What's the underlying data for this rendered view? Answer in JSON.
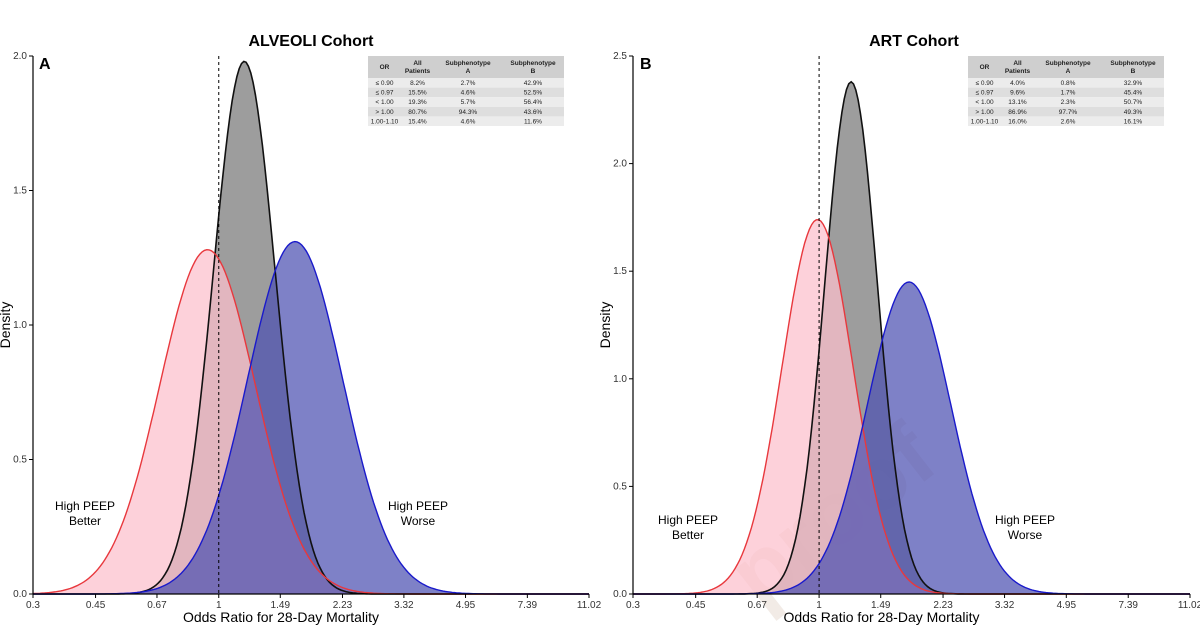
{
  "colors": {
    "alternative_fill": "#fcbfcc",
    "alternative_line": "#e8383d",
    "overall_fill": "#8c8c8c",
    "overall_line": "#111111",
    "subphenotype_fill": "#4c50b1",
    "subphenotype_line": "#1a1acb",
    "overlap_fill": "#6e2a3e"
  },
  "annotation_left": [
    "High PEEP",
    "Better"
  ],
  "annotation_right": [
    "High PEEP",
    "Worse"
  ],
  "x_tick_labels": [
    "0.3",
    "0.45",
    "0.67",
    "1",
    "1.49",
    "2.23",
    "3.32",
    "4.95",
    "7.39",
    "11.02"
  ],
  "xlabel": "Odds Ratio for 28-Day Mortality",
  "ylabel": "Density",
  "watermark": "proof",
  "table_header": [
    "OR",
    "All Patients",
    "Subphenotype A",
    "Subphenotype B"
  ],
  "chart_data": [
    {
      "type": "area",
      "panel": "A",
      "title": "ALVEOLI Cohort",
      "xlabel": "Odds Ratio for 28-Day Mortality",
      "ylabel": "Density",
      "x_scale": "log",
      "xlim": [
        0.3,
        11.02
      ],
      "ylim": [
        0,
        2.0
      ],
      "y_ticks": [
        "0.0",
        "0.5",
        "1.0",
        "1.5",
        "2.0"
      ],
      "reference_line": 1,
      "series": [
        {
          "color": "#8c8c8c",
          "peak_x": 1.18,
          "peak_y": 1.98,
          "log_sd": 0.2
        },
        {
          "color": "#fcbfcc",
          "peak_x": 0.93,
          "peak_y": 1.28,
          "log_sd": 0.31
        },
        {
          "color": "#4c50b1",
          "peak_x": 1.64,
          "peak_y": 1.31,
          "log_sd": 0.31
        }
      ],
      "table": [
        [
          "≤ 0.90",
          "8.2%",
          "2.7%",
          "42.9%"
        ],
        [
          "≤ 0.97",
          "15.5%",
          "4.6%",
          "52.5%"
        ],
        [
          "< 1.00",
          "19.3%",
          "5.7%",
          "56.4%"
        ],
        [
          "> 1.00",
          "80.7%",
          "94.3%",
          "43.6%"
        ],
        [
          "1.00-1.10",
          "15.4%",
          "4.6%",
          "11.6%"
        ]
      ]
    },
    {
      "type": "area",
      "panel": "B",
      "title": "ART Cohort",
      "xlabel": "Odds Ratio for 28-Day Mortality",
      "ylabel": "Density",
      "x_scale": "log",
      "xlim": [
        0.3,
        11.02
      ],
      "ylim": [
        0,
        2.5
      ],
      "y_ticks": [
        "0.0",
        "0.5",
        "1.0",
        "1.5",
        "2.0",
        "2.5"
      ],
      "reference_line": 1,
      "series": [
        {
          "color": "#8c8c8c",
          "peak_x": 1.23,
          "peak_y": 2.38,
          "log_sd": 0.17
        },
        {
          "color": "#fcbfcc",
          "peak_x": 0.99,
          "peak_y": 1.74,
          "log_sd": 0.23
        },
        {
          "color": "#4c50b1",
          "peak_x": 1.79,
          "peak_y": 1.45,
          "log_sd": 0.27
        }
      ],
      "table": [
        [
          "≤ 0.90",
          "4.0%",
          "0.8%",
          "32.9%"
        ],
        [
          "≤ 0.97",
          "9.6%",
          "1.7%",
          "45.4%"
        ],
        [
          "< 1.00",
          "13.1%",
          "2.3%",
          "50.7%"
        ],
        [
          "> 1.00",
          "86.9%",
          "97.7%",
          "49.3%"
        ],
        [
          "1.00-1.10",
          "16.0%",
          "2.6%",
          "16.1%"
        ]
      ]
    }
  ]
}
